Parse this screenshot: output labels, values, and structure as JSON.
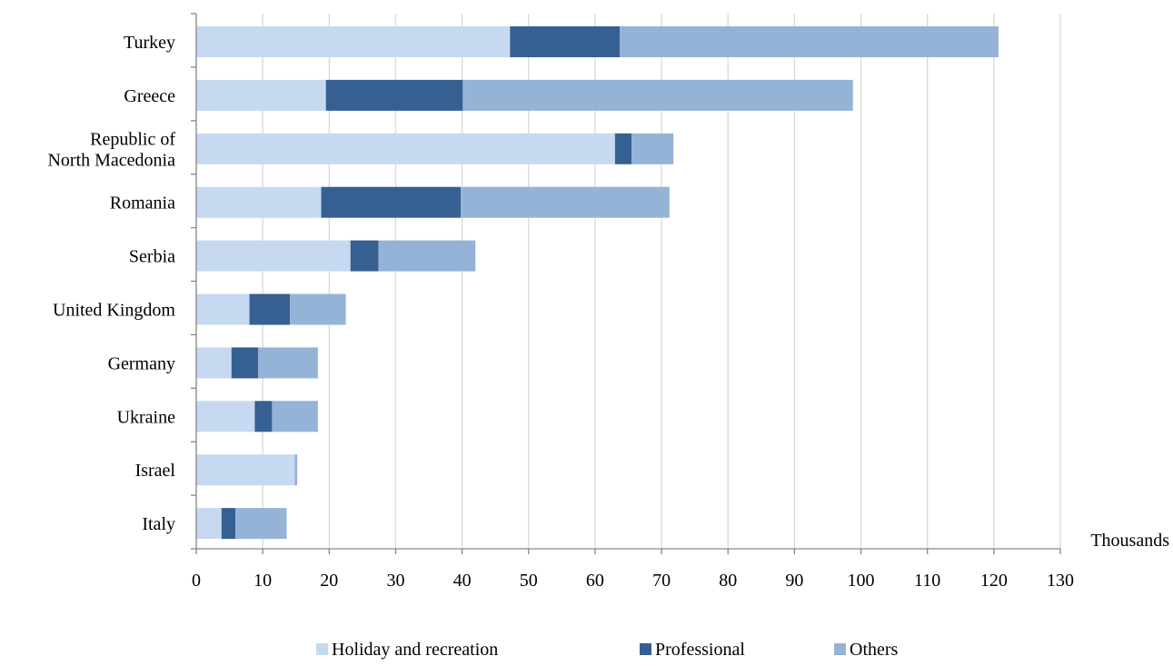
{
  "chart_data": {
    "type": "bar",
    "orientation": "horizontal",
    "stacked": true,
    "categories": [
      "Turkey",
      "Greece",
      "Republic of North Macedonia",
      "Romania",
      "Serbia",
      "United Kingdom",
      "Germany",
      "Ukraine",
      "Israel",
      "Italy"
    ],
    "category_lines": [
      [
        "Turkey"
      ],
      [
        "Greece"
      ],
      [
        "Republic of",
        "North Macedonia"
      ],
      [
        "Romania"
      ],
      [
        "Serbia"
      ],
      [
        "United Kingdom"
      ],
      [
        "Germany"
      ],
      [
        "Ukraine"
      ],
      [
        "Israel"
      ],
      [
        "Italy"
      ]
    ],
    "series": [
      {
        "name": "Holiday and recreation",
        "color": "#c6d9f1",
        "values": [
          47.2,
          19.5,
          63.0,
          18.8,
          23.2,
          8.0,
          5.3,
          8.8,
          14.8,
          3.8
        ]
      },
      {
        "name": "Professional",
        "color": "#366092",
        "values": [
          16.5,
          20.6,
          2.5,
          21.0,
          4.2,
          6.1,
          4.0,
          2.6,
          0.0,
          2.1
        ]
      },
      {
        "name": "Others",
        "color": "#95b3d7",
        "values": [
          57.0,
          58.7,
          6.3,
          31.4,
          14.6,
          8.4,
          9.0,
          6.9,
          0.4,
          7.7
        ]
      }
    ],
    "x_ticks": [
      0,
      10,
      20,
      30,
      40,
      50,
      60,
      70,
      80,
      90,
      100,
      110,
      120,
      130
    ],
    "xlim": [
      0,
      130
    ],
    "xlabel": "Thousands",
    "ylabel": "",
    "title": "",
    "grid": "vertical",
    "legend_position": "bottom"
  }
}
